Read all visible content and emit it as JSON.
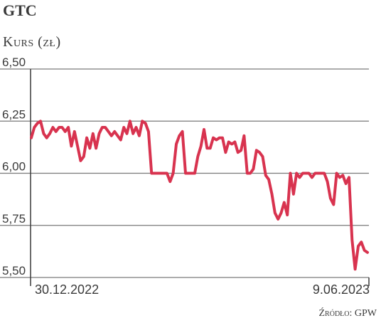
{
  "chart_data": {
    "type": "line",
    "title": "GTC",
    "subtitle": "Kurs (zł)",
    "source": "Źródło: GPW",
    "ylim": [
      5.5,
      6.5
    ],
    "yticks": [
      6.5,
      6.25,
      6.0,
      5.75,
      5.5
    ],
    "ytick_labels": [
      "6,50",
      "6,25",
      "6,00",
      "5,75",
      "5,50"
    ],
    "x_start_label": "30.12.2022",
    "x_end_label": "9.06.2023",
    "grid": true,
    "line_color": "#d8334f",
    "series": [
      {
        "values": [
          6.17,
          6.22,
          6.24,
          6.25,
          6.19,
          6.17,
          6.19,
          6.22,
          6.2,
          6.22,
          6.22,
          6.2,
          6.22,
          6.13,
          6.2,
          6.13,
          6.06,
          6.08,
          6.17,
          6.12,
          6.19,
          6.12,
          6.19,
          6.22,
          6.22,
          6.2,
          6.18,
          6.2,
          6.18,
          6.16,
          6.22,
          6.19,
          6.25,
          6.19,
          6.22,
          6.18,
          6.25,
          6.24,
          6.2,
          6.0,
          6.0,
          6.0,
          6.0,
          6.0,
          6.0,
          5.96,
          6.0,
          6.14,
          6.18,
          6.2,
          6.0,
          6.0,
          6.0,
          6.0,
          6.08,
          6.13,
          6.21,
          6.12,
          6.12,
          6.17,
          6.16,
          6.17,
          6.17,
          6.1,
          6.15,
          6.14,
          6.15,
          6.1,
          6.11,
          6.18,
          6.0,
          6.0,
          6.02,
          6.11,
          6.1,
          6.08,
          5.99,
          5.97,
          5.9,
          5.81,
          5.78,
          5.81,
          5.86,
          5.8,
          6.0,
          5.9,
          6.0,
          5.98,
          6.0,
          6.0,
          6.0,
          5.98,
          6.0,
          6.0,
          6.0,
          6.0,
          5.96,
          5.88,
          5.85,
          6.0,
          5.98,
          5.99,
          5.95,
          5.98,
          5.68,
          5.54,
          5.65,
          5.67,
          5.63,
          5.62
        ]
      }
    ]
  }
}
